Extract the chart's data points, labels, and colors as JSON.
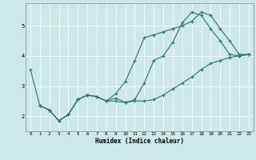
{
  "xlabel": "Humidex (Indice chaleur)",
  "bg_color": "#cce8e8",
  "line_color": "#2e7d6e",
  "grid_color": "#ffffff",
  "xlim": [
    -0.5,
    23.5
  ],
  "ylim": [
    1.5,
    5.75
  ],
  "xticks": [
    0,
    1,
    2,
    3,
    4,
    5,
    6,
    7,
    8,
    9,
    10,
    11,
    12,
    13,
    14,
    15,
    16,
    17,
    18,
    19,
    20,
    21,
    22,
    23
  ],
  "yticks": [
    2,
    3,
    4,
    5
  ],
  "line1_x": [
    0,
    1,
    2,
    3,
    4,
    5,
    6,
    7,
    8,
    9,
    10,
    11,
    12,
    13,
    14,
    15,
    16,
    17,
    18,
    19,
    20,
    21,
    22,
    23
  ],
  "line1_y": [
    3.55,
    2.35,
    2.2,
    1.85,
    2.05,
    2.55,
    2.7,
    2.65,
    2.5,
    2.6,
    2.45,
    2.55,
    3.1,
    3.85,
    4.0,
    4.45,
    5.1,
    5.45,
    5.35,
    4.9,
    4.5,
    4.05,
    4.0,
    4.05
  ],
  "line2_x": [
    1,
    2,
    3,
    4,
    5,
    6,
    7,
    8,
    9,
    10,
    11,
    12,
    13,
    14,
    15,
    16,
    17,
    18,
    19,
    20,
    21,
    22,
    23
  ],
  "line2_y": [
    2.35,
    2.2,
    1.85,
    2.05,
    2.55,
    2.7,
    2.65,
    2.5,
    2.75,
    3.15,
    3.85,
    4.6,
    4.7,
    4.8,
    4.9,
    5.0,
    5.15,
    5.45,
    5.35,
    4.9,
    4.5,
    4.05,
    4.05
  ],
  "line3_x": [
    1,
    2,
    3,
    4,
    5,
    6,
    7,
    8,
    9,
    10,
    11,
    12,
    13,
    14,
    15,
    16,
    17,
    18,
    19,
    20,
    21,
    22,
    23
  ],
  "line3_y": [
    2.35,
    2.2,
    1.85,
    2.05,
    2.55,
    2.7,
    2.65,
    2.5,
    2.5,
    2.45,
    2.5,
    2.5,
    2.55,
    2.7,
    2.9,
    3.1,
    3.3,
    3.55,
    3.75,
    3.85,
    3.95,
    4.0,
    4.05
  ]
}
